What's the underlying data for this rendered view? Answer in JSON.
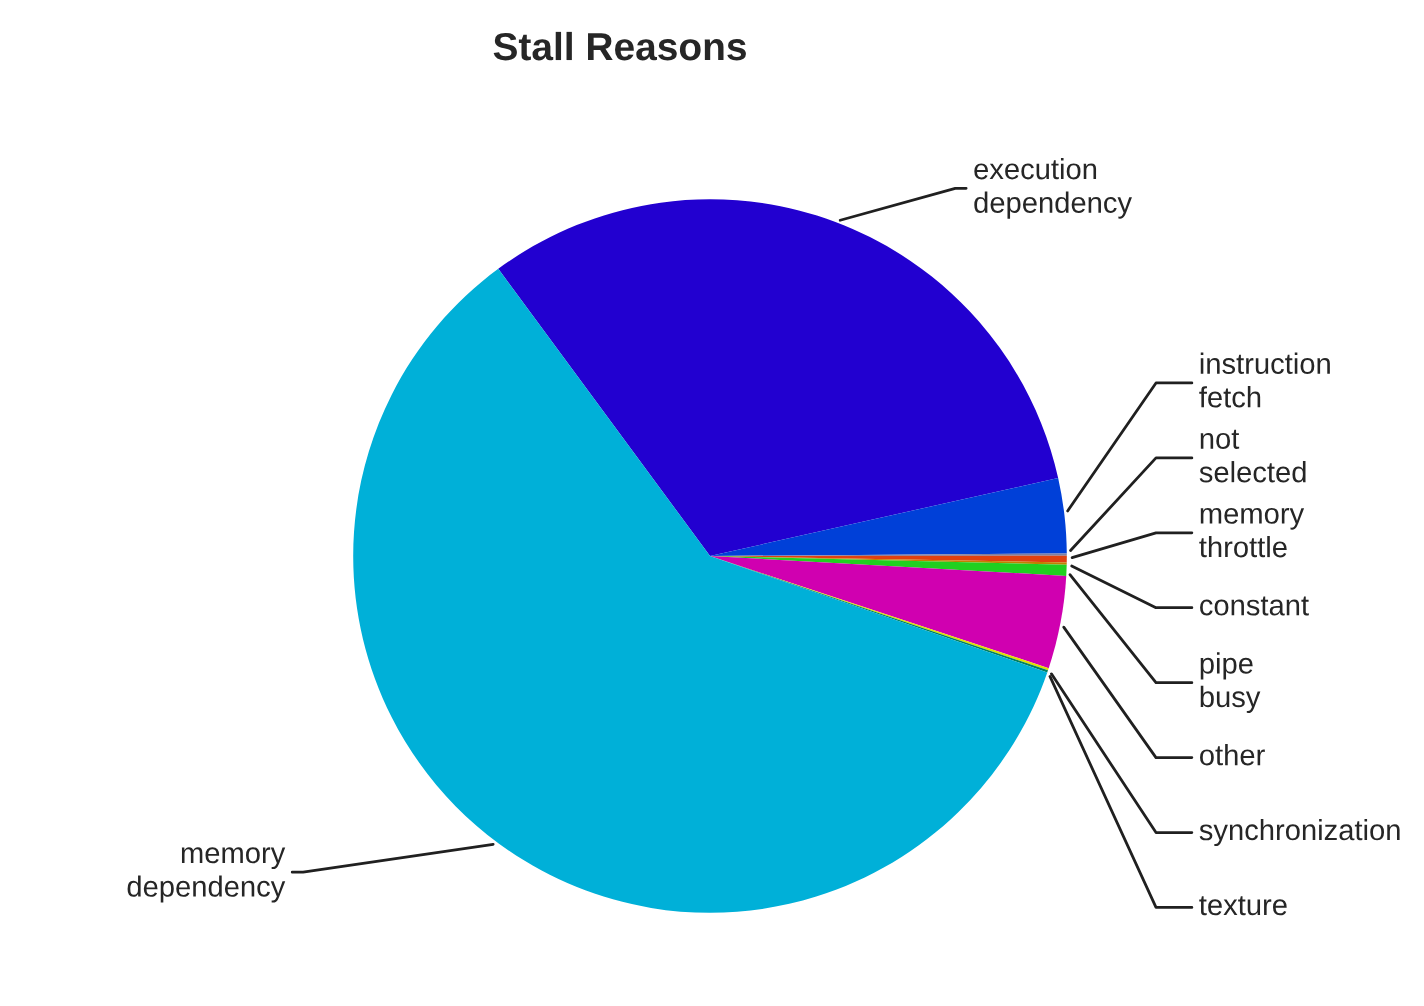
{
  "chart_data": {
    "type": "pie",
    "title": "Stall Reasons",
    "categories": [
      "execution\ndependency",
      "instruction\nfetch",
      "not\nselected",
      "memory\nthrottle",
      "constant",
      "pipe\nbusy",
      "other",
      "synchronization",
      "texture",
      "memory\ndependency"
    ],
    "values": [
      31.6,
      3.4,
      0.1,
      0.3,
      0.1,
      0.5,
      4.2,
      0.1,
      0.1,
      59.6
    ],
    "colors": [
      "#2200d0",
      "#0040d8",
      "#8080a0",
      "#e04010",
      "#c08000",
      "#20d020",
      "#d000b0",
      "#e0e000",
      "#008060",
      "#00b0d8"
    ]
  }
}
